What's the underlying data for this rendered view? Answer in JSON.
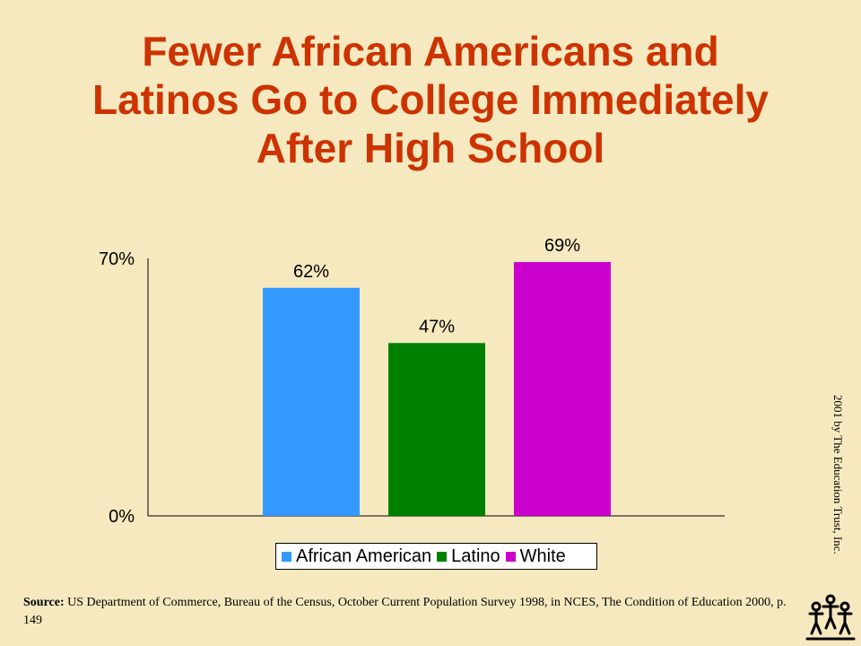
{
  "slide": {
    "title_lines": [
      "Fewer African Americans and",
      "Latinos Go to College Immediately",
      "After High School"
    ],
    "source_label": "Source:",
    "source_text": " US Department of Commerce, Bureau of the Census, October Current Population Survey 1998, in NCES, The Condition of Education 2000, p. 149",
    "copyright": "2001 by The Education Trust, Inc.",
    "logo_icon": "education-trust-logo-icon"
  },
  "chart_data": {
    "type": "bar",
    "title": "",
    "xlabel": "",
    "ylabel": "",
    "categories": [
      "African American",
      "Latino",
      "White"
    ],
    "values": [
      62,
      47,
      69
    ],
    "data_labels": [
      "62%",
      "47%",
      "69%"
    ],
    "colors": [
      "#3399ff",
      "#008000",
      "#cc00cc"
    ],
    "ylim": [
      0,
      70
    ],
    "yticks": [
      {
        "value": 0,
        "label": "0%"
      },
      {
        "value": 70,
        "label": "70%"
      }
    ],
    "grid": false,
    "legend_position": "bottom"
  }
}
